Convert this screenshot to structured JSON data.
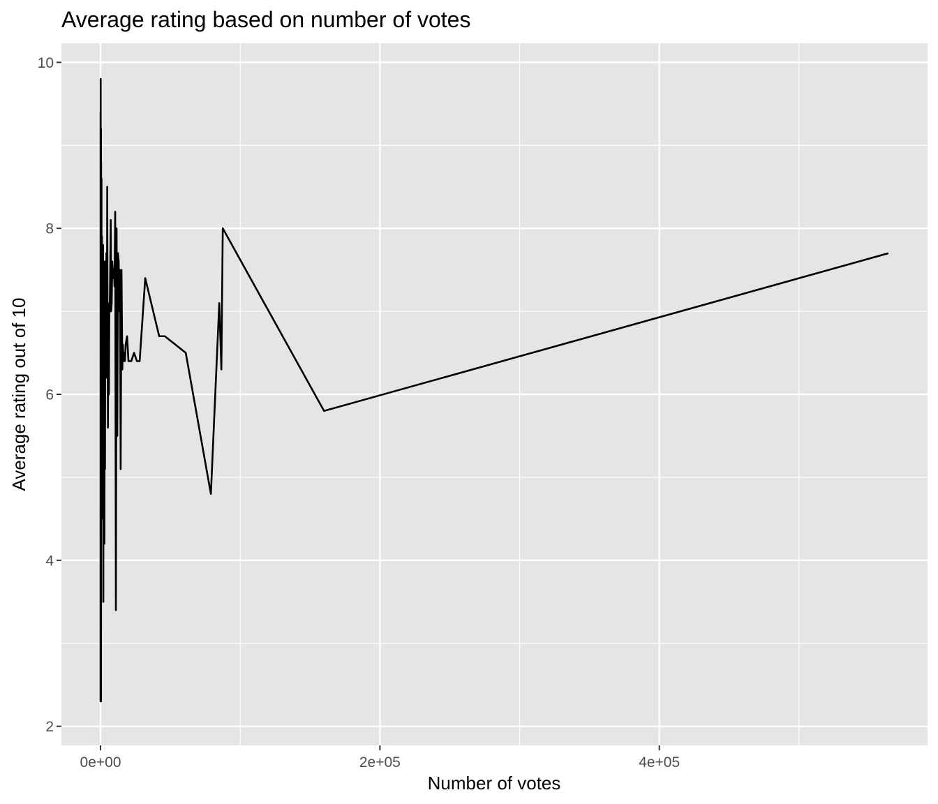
{
  "chart_data": {
    "type": "line",
    "title": "Average rating based on number of votes",
    "xlabel": "Number of votes",
    "ylabel": "Average rating out of 10",
    "xlim": [
      -28000,
      592000
    ],
    "ylim": [
      1.77,
      10.23
    ],
    "x_ticks": [
      {
        "value": 0,
        "label": "0e+00"
      },
      {
        "value": 200000,
        "label": "2e+05"
      },
      {
        "value": 400000,
        "label": "4e+05"
      }
    ],
    "x_minor_ticks": [
      100000,
      300000,
      500000
    ],
    "y_ticks": [
      {
        "value": 2,
        "label": "2"
      },
      {
        "value": 4,
        "label": "4"
      },
      {
        "value": 6,
        "label": "6"
      },
      {
        "value": 8,
        "label": "8"
      },
      {
        "value": 10,
        "label": "10"
      }
    ],
    "y_minor_ticks": [
      3,
      5,
      7,
      9
    ],
    "grid": true,
    "background_color": "#e5e5e5",
    "grid_color": "#ffffff",
    "line_color": "#000000",
    "series": [
      {
        "x": [
          0,
          30,
          60,
          100,
          150,
          200,
          250,
          300,
          350,
          400,
          450,
          500,
          550,
          600,
          650,
          700,
          750,
          800,
          900,
          1000,
          1200,
          1400,
          1600,
          1800,
          2000,
          2200,
          2400,
          2600,
          2800,
          3000,
          3200,
          3400,
          3600,
          3800,
          4000,
          4200,
          4500,
          4800,
          5000,
          5300,
          5600,
          6000,
          6300,
          6600,
          7000,
          7300,
          7600,
          8000,
          8400,
          8800,
          9200,
          9600,
          10000,
          10500,
          11000,
          11500,
          12000,
          12500,
          13000,
          13400,
          13700,
          14000,
          14400,
          15000,
          15600,
          16000,
          16500,
          17000,
          17500,
          18000,
          19000,
          20000,
          22000,
          24000,
          26000,
          28000,
          32000,
          42000,
          46000,
          61000,
          79000,
          85000,
          86500,
          87500,
          160000,
          564000
        ],
        "y": [
          2.3,
          9.4,
          3.5,
          9.8,
          2.3,
          8.6,
          3.0,
          9.2,
          2.3,
          8.8,
          6.4,
          8.0,
          5.3,
          7.8,
          4.8,
          8.6,
          5.0,
          7.6,
          6.6,
          7.9,
          4.5,
          7.4,
          6.2,
          7.8,
          3.5,
          7.5,
          5.9,
          7.6,
          4.2,
          7.5,
          5.1,
          7.6,
          6.4,
          7.3,
          6.8,
          7.7,
          6.2,
          8.5,
          7.0,
          5.6,
          7.0,
          6.0,
          7.1,
          7.0,
          7.6,
          8.1,
          7.0,
          7.1,
          7.6,
          7.5,
          7.4,
          7.5,
          7.3,
          8.2,
          3.4,
          8.0,
          5.5,
          7.7,
          7.6,
          7.0,
          7.5,
          7.2,
          5.1,
          7.5,
          6.3,
          6.6,
          6.4,
          6.5,
          6.4,
          6.6,
          6.7,
          6.4,
          6.4,
          6.5,
          6.4,
          6.4,
          7.4,
          6.7,
          6.7,
          6.5,
          4.8,
          7.1,
          6.3,
          8.0,
          5.8,
          7.7
        ]
      }
    ]
  }
}
